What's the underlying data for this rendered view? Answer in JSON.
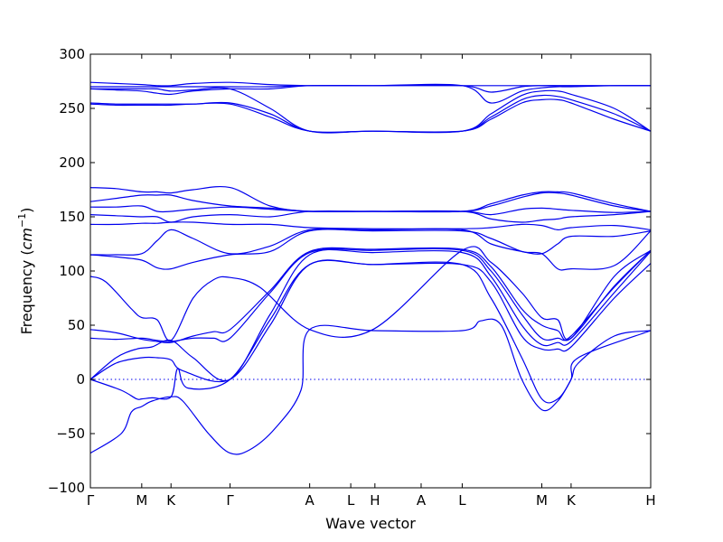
{
  "chart_data": {
    "type": "line",
    "xlabel": "Wave vector",
    "ylabel": "Frequency",
    "ylabel_unit": "cm",
    "ylabel_exponent": "−1",
    "ylim": [
      -100,
      300
    ],
    "yticks": [
      -100,
      -50,
      0,
      50,
      100,
      150,
      200,
      250,
      300
    ],
    "ytick_labels": [
      "−100",
      "−50",
      "0",
      "50",
      "100",
      "150",
      "200",
      "250",
      "300"
    ],
    "grid": false,
    "path_points": [
      {
        "label": "Γ",
        "x": 0.0
      },
      {
        "label": "M",
        "x": 1.0
      },
      {
        "label": "K",
        "x": 1.57
      },
      {
        "label": "Γ",
        "x": 2.72
      },
      {
        "label": "A",
        "x": 4.27
      },
      {
        "label": "L",
        "x": 5.07
      },
      {
        "label": "H",
        "x": 5.54
      },
      {
        "label": "A",
        "x": 6.44
      },
      {
        "label": "L",
        "x": 7.24
      },
      {
        "label": "M",
        "x": 8.79
      },
      {
        "label": "K",
        "x": 9.36
      },
      {
        "label": "H",
        "x": 10.91
      }
    ],
    "bands": [
      {
        "x": [
          0,
          0.6,
          0.8,
          1.0,
          1.2,
          1.57,
          1.8,
          2.3,
          2.72,
          3.1,
          3.6,
          4.1,
          4.27,
          5.5,
          7.24,
          7.6,
          8.0,
          8.4,
          8.79,
          9.1,
          9.36,
          9.5,
          10.2,
          10.91
        ],
        "y": [
          -68,
          -50,
          -30,
          -25,
          -20,
          -16,
          -20,
          -50,
          -68,
          -65,
          -45,
          -10,
          46,
          45,
          45,
          54,
          50,
          0,
          -28,
          -20,
          0,
          15,
          40,
          45
        ]
      },
      {
        "x": [
          0,
          0.6,
          0.9,
          1.0,
          1.2,
          1.57,
          1.7,
          1.9,
          2.72,
          3.5,
          4.27,
          5.5,
          7.24,
          7.8,
          8.4,
          8.79,
          9.1,
          9.36,
          9.5,
          10.91
        ],
        "y": [
          0,
          -10,
          -18,
          -18,
          -17,
          -16,
          10,
          -8,
          0,
          55,
          106,
          106,
          106,
          75,
          20,
          -18,
          -18,
          0,
          20,
          45
        ]
      },
      {
        "x": [
          0,
          0.5,
          1.0,
          1.3,
          1.57,
          1.8,
          2.72,
          3.5,
          4.27,
          5.5,
          7.24,
          7.8,
          8.4,
          8.79,
          9.1,
          9.36,
          10.2,
          10.91
        ],
        "y": [
          0,
          15,
          20,
          20,
          18,
          8,
          0,
          50,
          106,
          106,
          106,
          90,
          40,
          28,
          28,
          30,
          75,
          107
        ]
      },
      {
        "x": [
          0,
          0.5,
          0.9,
          1.2,
          1.57,
          2.0,
          2.72,
          3.5,
          4.27,
          5.5,
          7.24,
          7.8,
          8.4,
          8.79,
          9.1,
          9.36,
          10.2,
          10.91
        ],
        "y": [
          0,
          20,
          28,
          30,
          36,
          20,
          0,
          60,
          115,
          117,
          117,
          95,
          50,
          32,
          34,
          35,
          80,
          118
        ]
      },
      {
        "x": [
          0,
          0.5,
          1.0,
          1.3,
          1.57,
          2.0,
          2.4,
          2.72,
          3.5,
          4.27,
          5.5,
          7.24,
          7.8,
          8.4,
          8.79,
          9.1,
          9.36,
          10.2,
          10.91
        ],
        "y": [
          38,
          37,
          38,
          36,
          35,
          38,
          38,
          38,
          80,
          117,
          119,
          119,
          100,
          60,
          38,
          38,
          40,
          85,
          119
        ]
      },
      {
        "x": [
          0,
          0.5,
          1.0,
          1.3,
          1.57,
          2.0,
          2.4,
          2.72,
          3.5,
          4.27,
          5.5,
          7.24,
          7.8,
          8.4,
          8.79,
          9.1,
          9.36,
          10.2,
          10.91
        ],
        "y": [
          46,
          43,
          37,
          35,
          34,
          40,
          44,
          46,
          82,
          118,
          120,
          120,
          104,
          65,
          50,
          45,
          38,
          86,
          119
        ]
      },
      {
        "x": [
          0,
          0.3,
          0.8,
          1.0,
          1.3,
          1.57,
          2.0,
          2.4,
          2.72,
          3.3,
          4.27,
          5.5,
          7.24,
          7.8,
          8.4,
          8.79,
          9.1,
          9.36,
          10.2,
          10.91
        ],
        "y": [
          95,
          90,
          65,
          57,
          55,
          36,
          75,
          92,
          94,
          85,
          46,
          46,
          119,
          108,
          80,
          57,
          55,
          38,
          95,
          119
        ]
      },
      {
        "x": [
          0,
          0.5,
          1.0,
          1.3,
          1.57,
          2.0,
          2.72,
          3.5,
          4.27,
          5.5,
          7.24,
          7.8,
          8.4,
          8.79,
          9.1,
          9.36,
          10.2,
          10.91
        ],
        "y": [
          115,
          113,
          110,
          103,
          102,
          108,
          115,
          118,
          137,
          137,
          137,
          130,
          118,
          116,
          102,
          102,
          105,
          137
        ]
      },
      {
        "x": [
          0,
          0.5,
          1.0,
          1.3,
          1.57,
          2.0,
          2.72,
          3.5,
          4.27,
          5.5,
          7.24,
          7.8,
          8.4,
          8.79,
          9.1,
          9.36,
          10.2,
          10.91
        ],
        "y": [
          115,
          115,
          116,
          128,
          138,
          130,
          116,
          123,
          138,
          138,
          138,
          125,
          118,
          116,
          125,
          132,
          132,
          137
        ]
      },
      {
        "x": [
          0,
          0.5,
          1.0,
          1.3,
          1.57,
          2.0,
          2.72,
          3.5,
          4.27,
          5.5,
          7.24,
          7.8,
          8.4,
          8.79,
          9.1,
          9.36,
          10.2,
          10.91
        ],
        "y": [
          143,
          143,
          144,
          144,
          145,
          145,
          143,
          143,
          140,
          139,
          139,
          140,
          143,
          142,
          138,
          140,
          142,
          138
        ]
      },
      {
        "x": [
          0,
          0.5,
          1.0,
          1.3,
          1.57,
          2.0,
          2.72,
          3.5,
          4.27,
          5.5,
          7.24,
          7.8,
          8.4,
          8.79,
          9.1,
          9.36,
          10.2,
          10.91
        ],
        "y": [
          152,
          151,
          150,
          150,
          145,
          150,
          152,
          150,
          155,
          155,
          155,
          148,
          145,
          147,
          148,
          150,
          152,
          155
        ]
      },
      {
        "x": [
          0,
          0.5,
          1.0,
          1.3,
          1.57,
          2.0,
          2.72,
          3.5,
          4.27,
          5.5,
          7.24,
          7.8,
          8.4,
          8.79,
          9.1,
          9.36,
          10.2,
          10.91
        ],
        "y": [
          159,
          159,
          160,
          155,
          155,
          157,
          159,
          157,
          155,
          155,
          155,
          152,
          157,
          158,
          157,
          156,
          154,
          155
        ]
      },
      {
        "x": [
          0,
          0.5,
          1.0,
          1.3,
          1.57,
          2.0,
          2.72,
          3.5,
          4.27,
          5.5,
          7.24,
          7.8,
          8.4,
          8.79,
          9.1,
          9.36,
          10.2,
          10.91
        ],
        "y": [
          164,
          167,
          170,
          170,
          170,
          165,
          160,
          158,
          155,
          155,
          155,
          160,
          168,
          172,
          172,
          170,
          160,
          155
        ]
      },
      {
        "x": [
          0,
          0.5,
          1.0,
          1.3,
          1.57,
          2.0,
          2.72,
          3.5,
          4.27,
          5.5,
          7.24,
          7.8,
          8.4,
          8.79,
          9.1,
          9.36,
          10.2,
          10.91
        ],
        "y": [
          177,
          176,
          173,
          173,
          172,
          175,
          177,
          160,
          155,
          155,
          155,
          162,
          170,
          173,
          173,
          172,
          162,
          155
        ]
      },
      {
        "x": [
          0,
          0.5,
          1.0,
          1.3,
          1.57,
          2.0,
          2.72,
          3.5,
          4.27,
          5.5,
          7.24,
          7.8,
          8.4,
          8.79,
          9.1,
          9.36,
          10.2,
          10.91
        ],
        "y": [
          254,
          253,
          253,
          253,
          253,
          254,
          254,
          242,
          229,
          229,
          229,
          240,
          255,
          258,
          258,
          255,
          240,
          229
        ]
      },
      {
        "x": [
          0,
          0.5,
          1.0,
          1.3,
          1.57,
          2.0,
          2.72,
          3.5,
          4.27,
          5.5,
          7.24,
          7.8,
          8.4,
          8.79,
          9.1,
          9.36,
          10.2,
          10.91
        ],
        "y": [
          255,
          254,
          254,
          254,
          254,
          254,
          255,
          245,
          229,
          229,
          229,
          242,
          258,
          262,
          261,
          258,
          245,
          229
        ]
      },
      {
        "x": [
          0,
          0.5,
          1.0,
          1.3,
          1.57,
          2.0,
          2.72,
          3.5,
          4.27,
          5.5,
          7.24,
          7.8,
          8.4,
          8.79,
          9.1,
          9.36,
          10.2,
          10.91
        ],
        "y": [
          268,
          268,
          268,
          268,
          266,
          267,
          268,
          250,
          229,
          229,
          229,
          245,
          262,
          266,
          266,
          263,
          250,
          229
        ]
      },
      {
        "x": [
          0,
          0.5,
          1.0,
          1.3,
          1.57,
          2.0,
          2.72,
          3.5,
          4.27,
          5.5,
          7.24,
          7.8,
          8.4,
          8.79,
          9.1,
          9.36,
          10.2,
          10.91
        ],
        "y": [
          268,
          267,
          266,
          264,
          263,
          266,
          268,
          268,
          271,
          271,
          271,
          255,
          266,
          269,
          270,
          270,
          271,
          271
        ]
      },
      {
        "x": [
          0,
          0.5,
          1.0,
          1.3,
          1.57,
          2.0,
          2.72,
          3.5,
          4.27,
          5.5,
          7.24,
          7.8,
          8.4,
          8.79,
          9.1,
          9.36,
          10.2,
          10.91
        ],
        "y": [
          270,
          270,
          270,
          270,
          270,
          270,
          270,
          270,
          271,
          271,
          271,
          265,
          270,
          271,
          271,
          271,
          271,
          271
        ]
      },
      {
        "x": [
          0,
          0.5,
          1.0,
          1.3,
          1.57,
          2.0,
          2.72,
          3.5,
          4.27,
          5.5,
          7.24,
          7.8,
          8.4,
          8.79,
          9.1,
          9.36,
          10.2,
          10.91
        ],
        "y": [
          274,
          273,
          272,
          271,
          271,
          273,
          274,
          272,
          271,
          271,
          271,
          271,
          271,
          271,
          271,
          271,
          271,
          271
        ]
      }
    ]
  }
}
